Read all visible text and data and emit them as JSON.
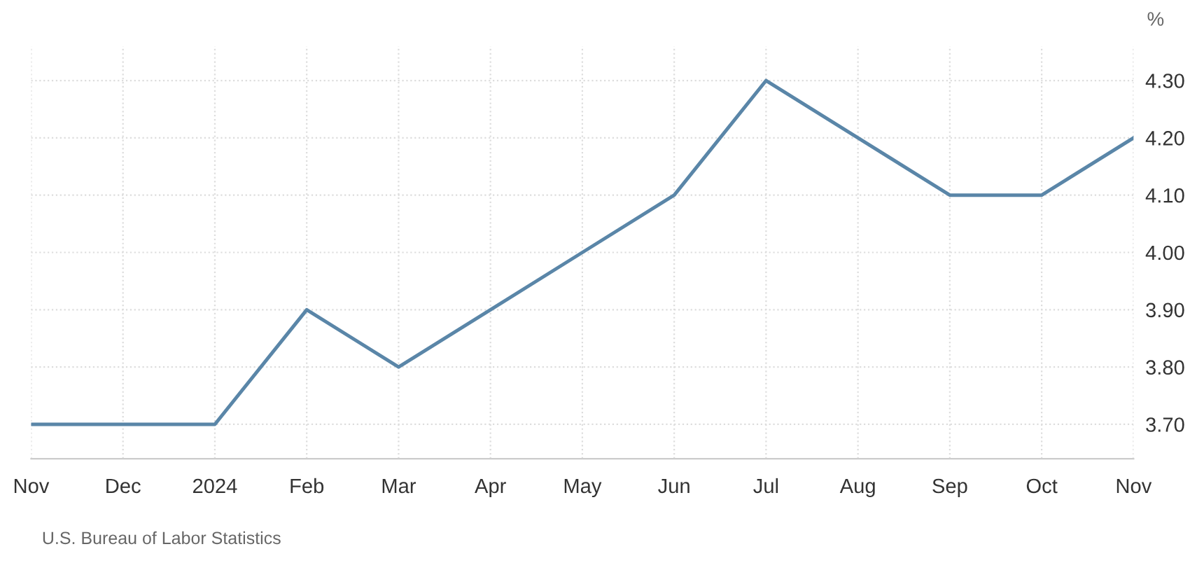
{
  "chart_data": {
    "type": "line",
    "categories": [
      "Nov",
      "Dec",
      "2024",
      "Feb",
      "Mar",
      "Apr",
      "May",
      "Jun",
      "Jul",
      "Aug",
      "Sep",
      "Oct",
      "Nov"
    ],
    "series": [
      {
        "color": "#5a86a8",
        "values": [
          3.7,
          3.7,
          3.7,
          3.9,
          3.8,
          3.9,
          4.0,
          4.1,
          4.3,
          4.2,
          4.1,
          4.1,
          4.2
        ]
      }
    ],
    "ylabel": "%",
    "ylim": [
      3.64,
      4.36
    ],
    "yticks": [
      {
        "value": 3.7,
        "label": "3.70"
      },
      {
        "value": 3.8,
        "label": "3.80"
      },
      {
        "value": 3.9,
        "label": "3.90"
      },
      {
        "value": 4.0,
        "label": "4.00"
      },
      {
        "value": 4.1,
        "label": "4.10"
      },
      {
        "value": 4.2,
        "label": "4.20"
      },
      {
        "value": 4.3,
        "label": "4.30"
      }
    ],
    "grid": true,
    "legend": false,
    "marker": "none",
    "line_style": "solid",
    "annotations": [
      "U.S. Bureau of Labor Statistics"
    ]
  }
}
